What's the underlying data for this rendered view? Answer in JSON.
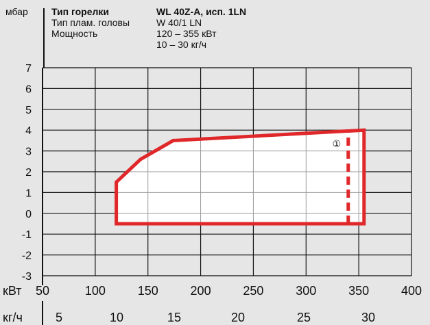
{
  "header": {
    "unit_y": "мбар",
    "rows": [
      {
        "label": "Тип горелки",
        "value": "WL 40Z-A, исп. 1LN",
        "bold": true
      },
      {
        "label": "Тип плам. головы",
        "value": "W 40/1 LN",
        "bold": false
      },
      {
        "label": "Мощность",
        "value": "120 – 355 кВт",
        "bold": false
      },
      {
        "label": "",
        "value": "10 –   30 кг/ч",
        "bold": false
      }
    ]
  },
  "chart_data": {
    "type": "area",
    "title": "",
    "ylabel": "мбар",
    "ylim": [
      -3,
      7
    ],
    "yticks": [
      7,
      6,
      5,
      4,
      3,
      2,
      1,
      0,
      -1,
      -2,
      -3
    ],
    "x_axes": [
      {
        "label": "кВт",
        "ticks": [
          50,
          100,
          150,
          200,
          250,
          300,
          350,
          400
        ],
        "range": [
          50,
          400
        ]
      },
      {
        "label": "кг/ч",
        "ticks": [
          5,
          10,
          15,
          20,
          25,
          30
        ]
      }
    ],
    "grid": true,
    "colors": {
      "curve": "#e0282a",
      "fill": "#ffffff",
      "grid": "#999999",
      "axis": "#111111"
    },
    "series": [
      {
        "kind": "working-field",
        "x": [
          120,
          120,
          143,
          174,
          355,
          355,
          120
        ],
        "y": [
          -0.5,
          1.5,
          2.6,
          3.5,
          4.0,
          -0.5,
          -0.5
        ]
      },
      {
        "kind": "limit-dashed",
        "x": [
          340,
          340
        ],
        "y": [
          -0.5,
          4.0
        ]
      }
    ],
    "annotations": [
      {
        "text": "①",
        "x": 329,
        "y": 3.35
      }
    ]
  }
}
